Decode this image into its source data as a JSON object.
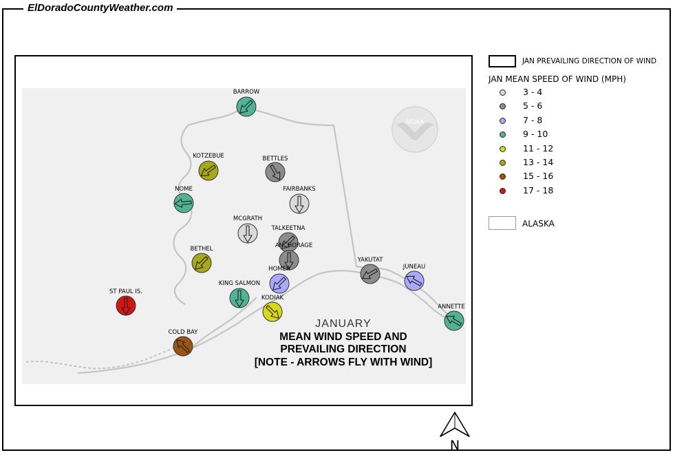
{
  "header": {
    "site_title": "ElDoradoCountyWeather.com"
  },
  "map": {
    "title": "JANUARY",
    "subtitle_lines": [
      "MEAN WIND SPEED AND",
      "PREVAILING DIRECTION",
      "[NOTE - ARROWS FLY WITH WIND]"
    ],
    "logo_text": "NOAA",
    "north_label": "N",
    "stations": [
      {
        "name": "BARROW",
        "speed_class": "9 - 10",
        "arrow_heading_deg": 225
      },
      {
        "name": "KOTZEBUE",
        "speed_class": "13 - 14",
        "arrow_heading_deg": 235
      },
      {
        "name": "BETTLES",
        "speed_class": "5 - 6",
        "arrow_heading_deg": 150
      },
      {
        "name": "NOME",
        "speed_class": "9 - 10",
        "arrow_heading_deg": 265
      },
      {
        "name": "FAIRBANKS",
        "speed_class": "3 - 4",
        "arrow_heading_deg": 180
      },
      {
        "name": "MCGRATH",
        "speed_class": "3 - 4",
        "arrow_heading_deg": 180
      },
      {
        "name": "TALKEETNA",
        "speed_class": "5 - 6",
        "arrow_heading_deg": 225
      },
      {
        "name": "ANCHORAGE",
        "speed_class": "5 - 6",
        "arrow_heading_deg": 180
      },
      {
        "name": "BETHEL",
        "speed_class": "13 - 14",
        "arrow_heading_deg": 225
      },
      {
        "name": "HOMER",
        "speed_class": "7 - 8",
        "arrow_heading_deg": 225
      },
      {
        "name": "YAKUTAT",
        "speed_class": "5 - 6",
        "arrow_heading_deg": 240
      },
      {
        "name": "JUNEAU",
        "speed_class": "7 - 8",
        "arrow_heading_deg": 300
      },
      {
        "name": "KING SALMON",
        "speed_class": "9 - 10",
        "arrow_heading_deg": 180
      },
      {
        "name": "KODIAK",
        "speed_class": "11 - 12",
        "arrow_heading_deg": 135
      },
      {
        "name": "ST PAUL IS.",
        "speed_class": "17 - 18",
        "arrow_heading_deg": 180
      },
      {
        "name": "COLD BAY",
        "speed_class": "15 - 16",
        "arrow_heading_deg": 315
      },
      {
        "name": "ANNETTE",
        "speed_class": "9 - 10",
        "arrow_heading_deg": 300
      }
    ]
  },
  "legend": {
    "direction_label": "JAN PREVAILING DIRECTION OF WIND",
    "speed_title": "JAN MEAN SPEED OF WIND (MPH)",
    "speed_classes": [
      {
        "label": "3 - 4",
        "color": "#d9d9d9"
      },
      {
        "label": "5 - 6",
        "color": "#8c8c8c"
      },
      {
        "label": "7 - 8",
        "color": "#a9a9ff"
      },
      {
        "label": "9 - 10",
        "color": "#4fb394"
      },
      {
        "label": "11 - 12",
        "color": "#d8d81a"
      },
      {
        "label": "13 - 14",
        "color": "#a8a81c"
      },
      {
        "label": "15 - 16",
        "color": "#9b5413"
      },
      {
        "label": "17 - 18",
        "color": "#d21515"
      }
    ],
    "area_label": "ALASKA"
  }
}
